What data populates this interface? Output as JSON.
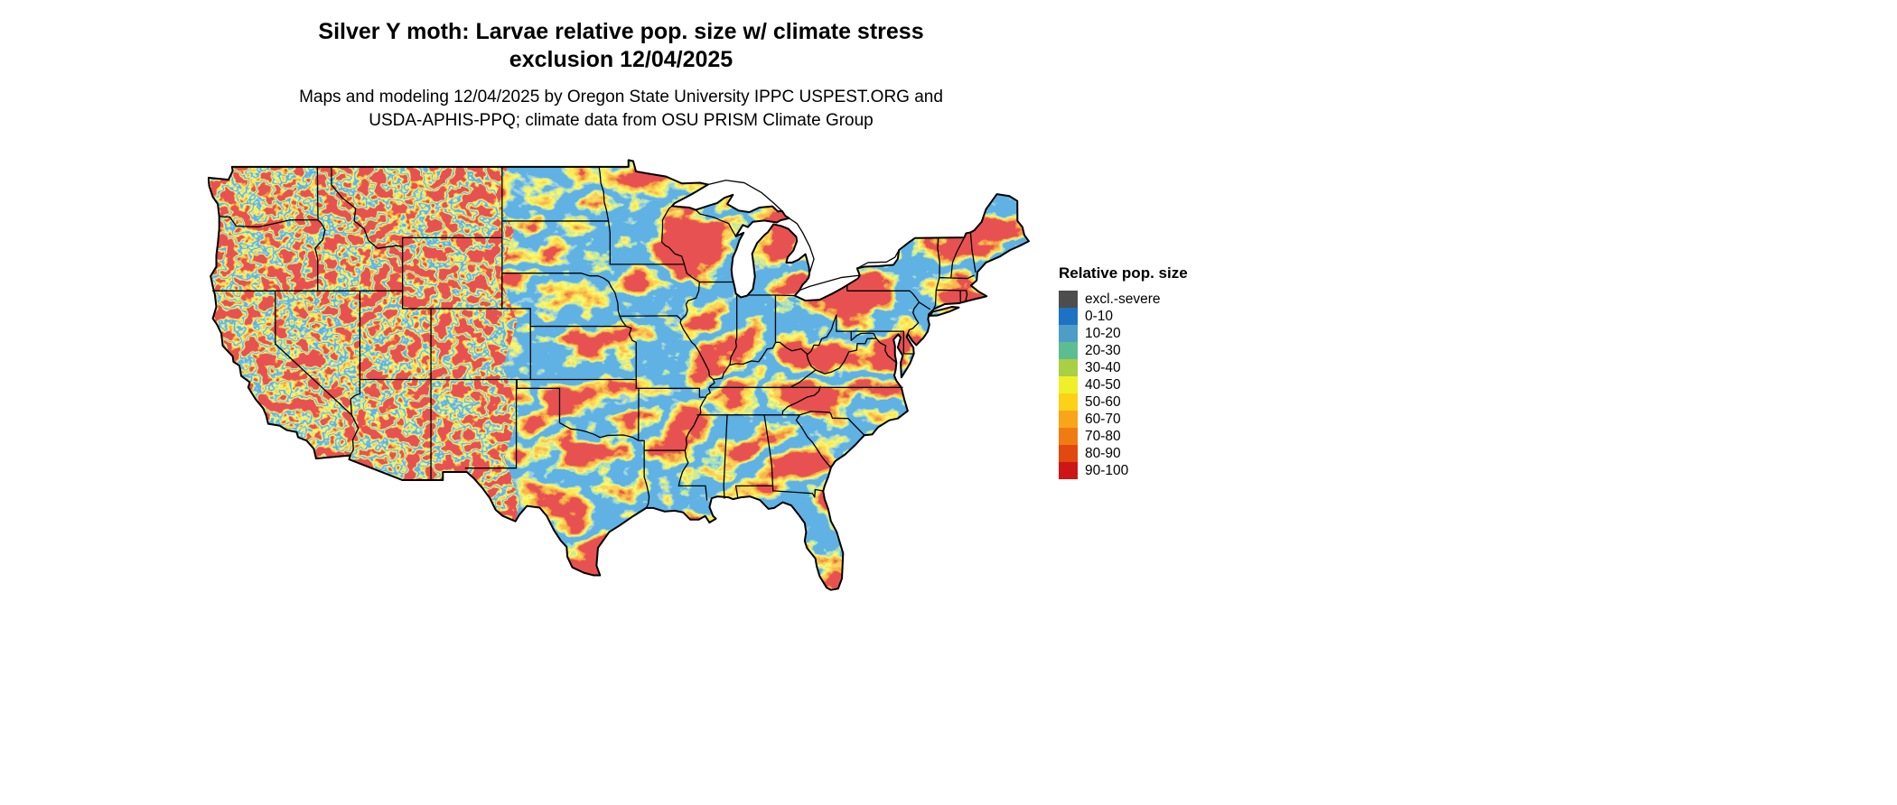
{
  "header": {
    "title_line1": "Silver Y moth: Larvae relative pop. size w/ climate stress",
    "title_line2": "exclusion 12/04/2025",
    "subtitle_line1": "Maps and modeling 12/04/2025 by Oregon State University IPPC USPEST.ORG and",
    "subtitle_line2": "USDA-APHIS-PPQ; climate data from OSU PRISM Climate Group"
  },
  "map": {
    "region": "Contiguous United States",
    "outline_color": "#000000",
    "background_color": "#ffffff"
  },
  "legend": {
    "title": "Relative pop. size",
    "items": [
      {
        "label": "excl.-severe",
        "color": "#4d4d4d"
      },
      {
        "label": "0-10",
        "color": "#1d72c4"
      },
      {
        "label": "10-20",
        "color": "#4e9dc6"
      },
      {
        "label": "20-30",
        "color": "#5dbd92"
      },
      {
        "label": "30-40",
        "color": "#a9cf44"
      },
      {
        "label": "40-50",
        "color": "#eff02b"
      },
      {
        "label": "50-60",
        "color": "#fcd116"
      },
      {
        "label": "60-70",
        "color": "#f9a51a"
      },
      {
        "label": "70-80",
        "color": "#ef7c12"
      },
      {
        "label": "80-90",
        "color": "#e1490f"
      },
      {
        "label": "90-100",
        "color": "#cd1616"
      }
    ]
  }
}
